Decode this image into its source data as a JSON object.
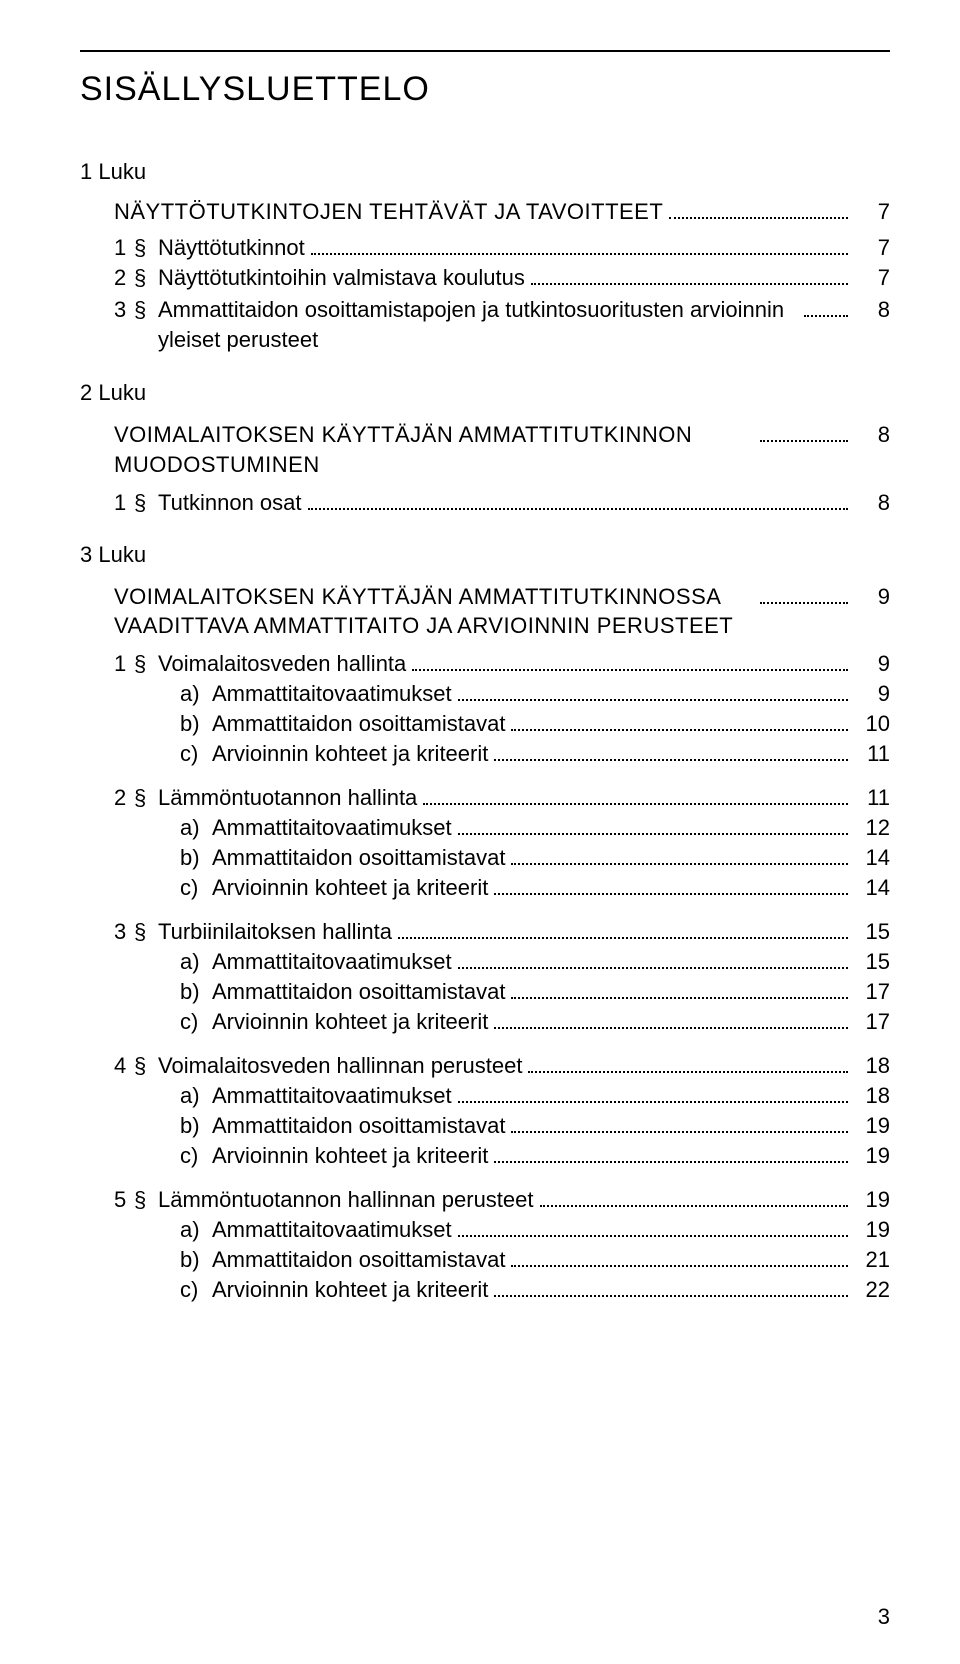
{
  "colors": {
    "text": "#000000",
    "background": "#ffffff",
    "rule": "#000000",
    "dots": "#000000"
  },
  "typography": {
    "title_fontsize": 34,
    "body_fontsize": 22,
    "font_family": "Futura / Century Gothic style geometric sans-serif"
  },
  "page_number": "3",
  "title": "SISÄLLYSLUETTELO",
  "chapters": [
    {
      "label": "1 Luku",
      "heading": "NÄYTTÖTUTKINTOJEN TEHTÄVÄT JA TAVOITTEET",
      "heading_page": "7",
      "sections": [
        {
          "num": "1",
          "mark": "§",
          "label": "Näyttötutkinnot",
          "page": "7"
        },
        {
          "num": "2",
          "mark": "§",
          "label": "Näyttötutkintoihin valmistava koulutus",
          "page": "7"
        },
        {
          "num": "3",
          "mark": "§",
          "label": "Ammattitaidon osoittamistapojen ja tutkintosuoritusten arvioinnin yleiset perusteet",
          "page": "8",
          "long": true
        }
      ]
    },
    {
      "label": "2 Luku",
      "heading": "VOIMALAITOKSEN KÄYTTÄJÄN AMMATTITUTKINNON MUODOSTUMINEN",
      "heading_page": "8",
      "heading_multiline": true,
      "sections": [
        {
          "num": "1",
          "mark": "§",
          "label": "Tutkinnon osat",
          "page": "8"
        }
      ]
    },
    {
      "label": "3 Luku",
      "heading": "VOIMALAITOKSEN KÄYTTÄJÄN AMMATTITUTKINNOSSA VAADITTAVA AMMATTITAITO JA ARVIOINNIN PERUSTEET",
      "heading_page": "9",
      "heading_multiline": true,
      "sections": [
        {
          "num": "1",
          "mark": "§",
          "label": "Voimalaitosveden hallinta",
          "page": "9",
          "subs": [
            {
              "prefix": "a)",
              "label": "Ammattitaitovaatimukset",
              "page": "9"
            },
            {
              "prefix": "b)",
              "label": "Ammattitaidon osoittamistavat",
              "page": "10"
            },
            {
              "prefix": "c)",
              "label": "Arvioinnin kohteet ja kriteerit",
              "page": "11"
            }
          ]
        },
        {
          "num": "2",
          "mark": "§",
          "label": "Lämmöntuotannon hallinta",
          "page": "11",
          "subs": [
            {
              "prefix": "a)",
              "label": "Ammattitaitovaatimukset",
              "page": "12"
            },
            {
              "prefix": "b)",
              "label": "Ammattitaidon osoittamistavat",
              "page": "14"
            },
            {
              "prefix": "c)",
              "label": "Arvioinnin kohteet ja kriteerit",
              "page": "14"
            }
          ]
        },
        {
          "num": "3",
          "mark": "§",
          "label": "Turbiinilaitoksen hallinta",
          "page": "15",
          "subs": [
            {
              "prefix": "a)",
              "label": "Ammattitaitovaatimukset",
              "page": "15"
            },
            {
              "prefix": "b)",
              "label": "Ammattitaidon osoittamistavat",
              "page": "17"
            },
            {
              "prefix": "c)",
              "label": "Arvioinnin kohteet ja kriteerit",
              "page": "17"
            }
          ]
        },
        {
          "num": "4",
          "mark": "§",
          "label": "Voimalaitosveden hallinnan perusteet",
          "page": "18",
          "subs": [
            {
              "prefix": "a)",
              "label": "Ammattitaitovaatimukset",
              "page": "18"
            },
            {
              "prefix": "b)",
              "label": "Ammattitaidon osoittamistavat",
              "page": "19"
            },
            {
              "prefix": "c)",
              "label": "Arvioinnin kohteet ja kriteerit",
              "page": "19"
            }
          ]
        },
        {
          "num": "5",
          "mark": "§",
          "label": "Lämmöntuotannon hallinnan perusteet",
          "page": "19",
          "subs": [
            {
              "prefix": "a)",
              "label": "Ammattitaitovaatimukset",
              "page": "19"
            },
            {
              "prefix": "b)",
              "label": "Ammattitaidon osoittamistavat",
              "page": "21"
            },
            {
              "prefix": "c)",
              "label": "Arvioinnin kohteet ja kriteerit",
              "page": "22"
            }
          ]
        }
      ]
    }
  ]
}
